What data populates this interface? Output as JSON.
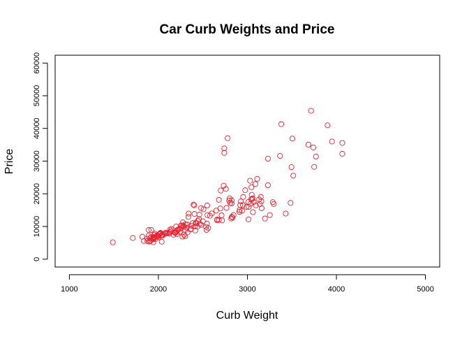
{
  "chart_data": {
    "type": "scatter",
    "title": "Car Curb Weights and Price",
    "xlabel": "Curb Weight",
    "ylabel": "Price",
    "xlim": [
      840,
      5160
    ],
    "ylim": [
      -2400,
      62400
    ],
    "xticks": [
      1000,
      2000,
      3000,
      4000,
      5000
    ],
    "yticks": [
      0,
      10000,
      20000,
      30000,
      40000,
      50000,
      60000
    ],
    "grid": false,
    "legend": "none",
    "point_color": "#e8202e",
    "series": [
      {
        "points": [
          [
            1488,
            5151
          ],
          [
            1713,
            6479
          ],
          [
            1819,
            6855
          ],
          [
            1837,
            5572
          ],
          [
            1874,
            6295
          ],
          [
            1876,
            5499
          ],
          [
            1889,
            7129
          ],
          [
            1890,
            8916
          ],
          [
            1900,
            5389
          ],
          [
            1905,
            6377
          ],
          [
            1909,
            5572
          ],
          [
            1918,
            6669
          ],
          [
            1920,
            8949
          ],
          [
            1938,
            6229
          ],
          [
            1940,
            6488
          ],
          [
            1944,
            5195
          ],
          [
            1945,
            6095
          ],
          [
            1950,
            6795
          ],
          [
            1951,
            7395
          ],
          [
            1956,
            6575
          ],
          [
            1967,
            6189
          ],
          [
            1971,
            6918
          ],
          [
            1985,
            7099
          ],
          [
            1989,
            7349
          ],
          [
            1989,
            6849
          ],
          [
            2004,
            6692
          ],
          [
            2008,
            7609
          ],
          [
            2015,
            7738
          ],
          [
            2017,
            7898
          ],
          [
            2024,
            8058
          ],
          [
            2028,
            7198
          ],
          [
            2037,
            5348
          ],
          [
            2040,
            7299
          ],
          [
            2050,
            7295
          ],
          [
            2081,
            7775
          ],
          [
            2094,
            7957
          ],
          [
            2109,
            7975
          ],
          [
            2122,
            7788
          ],
          [
            2128,
            8238
          ],
          [
            2140,
            8558
          ],
          [
            2145,
            9233
          ],
          [
            2169,
            7463
          ],
          [
            2190,
            8013
          ],
          [
            2191,
            8195
          ],
          [
            2204,
            8449
          ],
          [
            2209,
            7689
          ],
          [
            2212,
            8845
          ],
          [
            2221,
            9095
          ],
          [
            2236,
            9298
          ],
          [
            2240,
            8358
          ],
          [
            2250,
            10198
          ],
          [
            2261,
            9549
          ],
          [
            2264,
            10345
          ],
          [
            2275,
            11245
          ],
          [
            2280,
            10295
          ],
          [
            2289,
            7499
          ],
          [
            2290,
            9960
          ],
          [
            2300,
            8921
          ],
          [
            2304,
            10698
          ],
          [
            2319,
            9639
          ],
          [
            2324,
            10595
          ],
          [
            2328,
            8189
          ],
          [
            2337,
            12945
          ],
          [
            2340,
            13950
          ],
          [
            2365,
            9279
          ],
          [
            2370,
            10245
          ],
          [
            2385,
            11048
          ],
          [
            2395,
            16695
          ],
          [
            2403,
            16500
          ],
          [
            2405,
            13845
          ],
          [
            2410,
            9989
          ],
          [
            2414,
            8778
          ],
          [
            2420,
            11199
          ],
          [
            2425,
            10945
          ],
          [
            2440,
            9988
          ],
          [
            2443,
            11694
          ],
          [
            2455,
            12290
          ],
          [
            2460,
            13645
          ],
          [
            2465,
            10795
          ],
          [
            2480,
            15645
          ],
          [
            2500,
            11595
          ],
          [
            2507,
            15250
          ],
          [
            2535,
            9895
          ],
          [
            2540,
            8948
          ],
          [
            2545,
            10898
          ],
          [
            2548,
            16430
          ],
          [
            2550,
            13495
          ],
          [
            2560,
            9495
          ],
          [
            2579,
            13295
          ],
          [
            2650,
            14869
          ],
          [
            2658,
            11900
          ],
          [
            2661,
            12170
          ],
          [
            2679,
            18150
          ],
          [
            2695,
            15510
          ],
          [
            2710,
            13415
          ],
          [
            2714,
            11850
          ],
          [
            2734,
            22470
          ],
          [
            2740,
            32528
          ],
          [
            2758,
            21485
          ],
          [
            2765,
            15690
          ],
          [
            2778,
            37028
          ],
          [
            2795,
            17950
          ],
          [
            2800,
            18620
          ],
          [
            2807,
            17199
          ],
          [
            2818,
            12440
          ],
          [
            2823,
            17075
          ],
          [
            2824,
            12945
          ],
          [
            2833,
            12764
          ],
          [
            2844,
            13499
          ],
          [
            2910,
            14489
          ],
          [
            2912,
            15040
          ],
          [
            2920,
            16558
          ],
          [
            2926,
            17669
          ],
          [
            2950,
            16515
          ],
          [
            2952,
            19045
          ],
          [
            2975,
            21105
          ],
          [
            3012,
            12170
          ],
          [
            3016,
            15998
          ],
          [
            3034,
            16925
          ],
          [
            3042,
            18344
          ],
          [
            3045,
            22018
          ],
          [
            3049,
            19699
          ],
          [
            3053,
            18399
          ],
          [
            3060,
            18620
          ],
          [
            3062,
            14399
          ],
          [
            3071,
            17450
          ],
          [
            3095,
            16500
          ],
          [
            3110,
            24565
          ],
          [
            3131,
            18280
          ],
          [
            3139,
            16845
          ],
          [
            3151,
            19045
          ],
          [
            3157,
            17710
          ],
          [
            3197,
            12440
          ],
          [
            3230,
            22625
          ],
          [
            3252,
            13499
          ],
          [
            3285,
            17450
          ],
          [
            3296,
            16900
          ],
          [
            3366,
            31600
          ],
          [
            3380,
            41315
          ],
          [
            3430,
            13950
          ],
          [
            3485,
            17199
          ],
          [
            3495,
            28176
          ],
          [
            3505,
            36880
          ],
          [
            3515,
            25552
          ],
          [
            3685,
            35056
          ],
          [
            3715,
            45400
          ],
          [
            3740,
            34184
          ],
          [
            3750,
            28248
          ],
          [
            3770,
            31400
          ],
          [
            3900,
            40960
          ],
          [
            3950,
            36000
          ],
          [
            4066,
            32250
          ],
          [
            4066,
            35550
          ],
          [
            3230,
            30760
          ],
          [
            3030,
            24000
          ],
          [
            2700,
            21000
          ],
          [
            2740,
            33900
          ],
          [
            2300,
            7000
          ],
          [
            2200,
            10000
          ],
          [
            2130,
            9000
          ],
          [
            2600,
            14000
          ],
          [
            2825,
            18000
          ],
          [
            3010,
            17500
          ],
          [
            3090,
            23000
          ],
          [
            2480,
            10500
          ],
          [
            2360,
            9100
          ],
          [
            2270,
            6900
          ],
          [
            2180,
            8200
          ],
          [
            2060,
            7650
          ],
          [
            1960,
            7800
          ],
          [
            2080,
            8100
          ],
          [
            2680,
            12000
          ],
          [
            2990,
            16000
          ],
          [
            2940,
            14800
          ],
          [
            3160,
            15600
          ]
        ]
      }
    ]
  }
}
